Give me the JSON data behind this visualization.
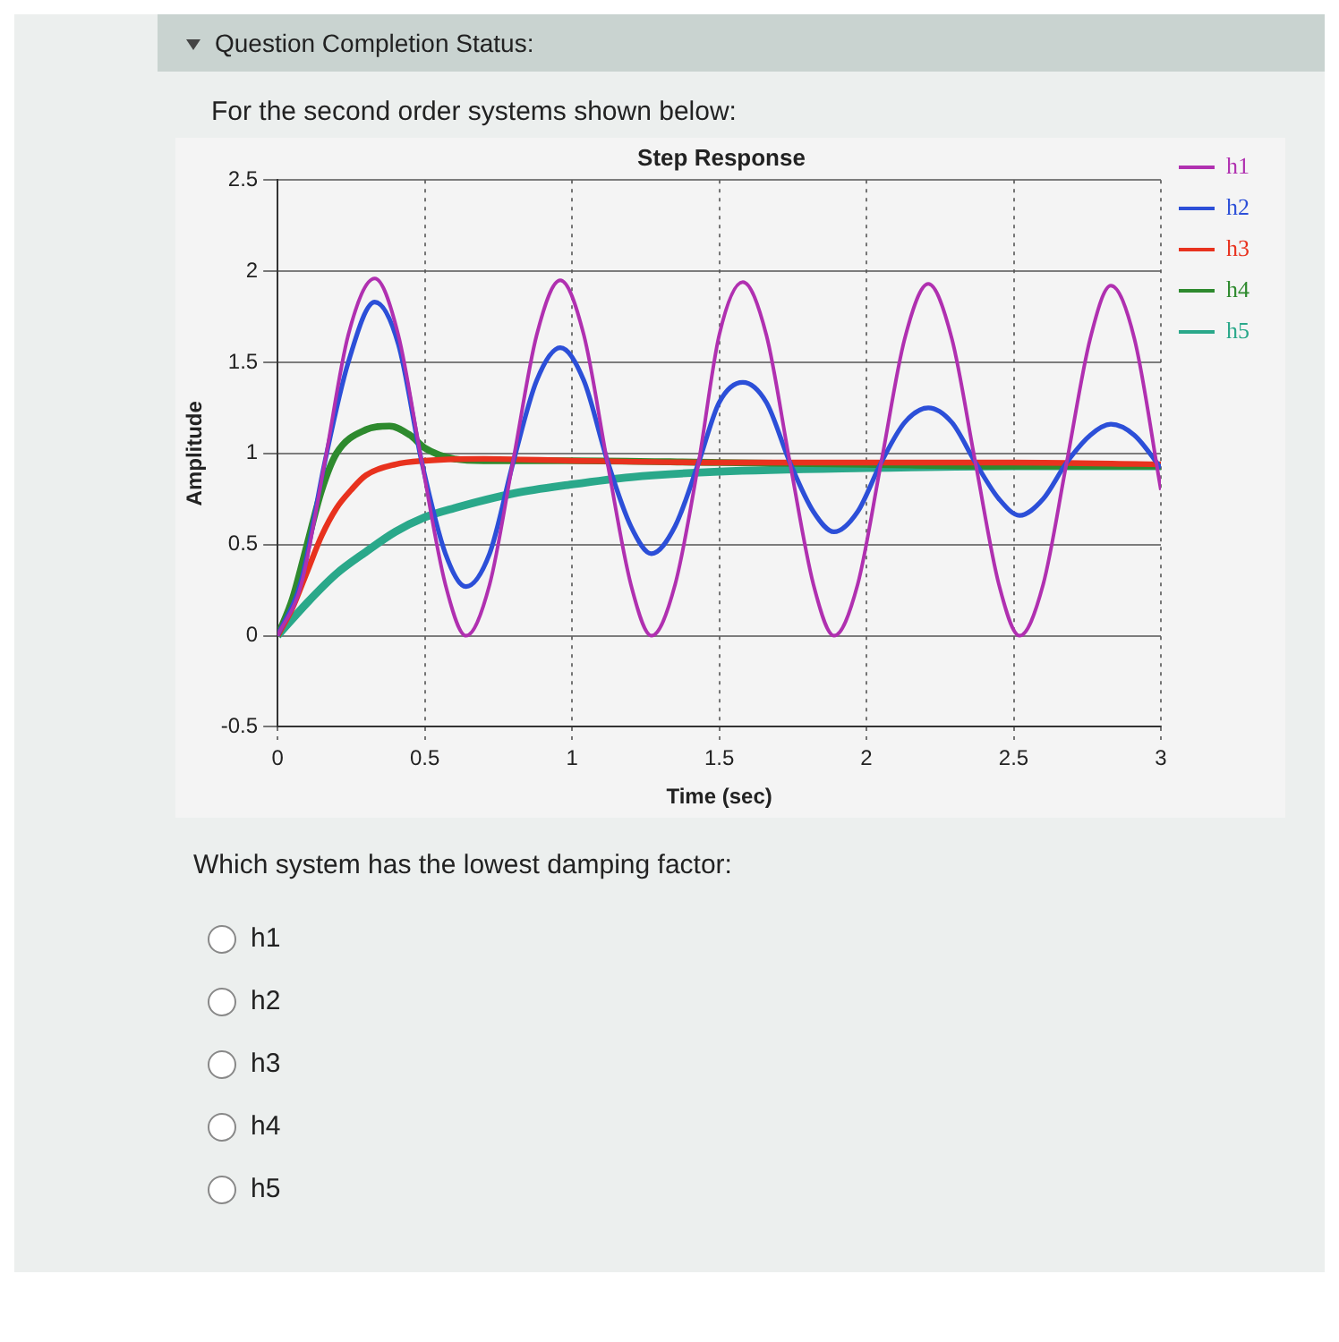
{
  "chart_data": {
    "type": "line",
    "title": "Step Response",
    "xlabel": "Time (sec)",
    "ylabel": "Amplitude",
    "annotations": [
      "Question Completion Status:",
      "For the second order systems shown below:",
      "Which system has the lowest damping factor:",
      "h1",
      "h2",
      "h3",
      "h4",
      "h5"
    ],
    "xlim": [
      0,
      3
    ],
    "xticks": [
      0,
      0.5,
      1,
      1.5,
      2,
      2.5,
      3
    ],
    "ylim": [
      -0.5,
      2.5
    ],
    "yticks": [
      -0.5,
      0,
      0.5,
      1,
      1.5,
      2,
      2.5
    ],
    "grid": true,
    "legend": "right",
    "marker": "none",
    "line_style": "solid",
    "series": [
      {
        "name": "h1",
        "color": "#b030b0",
        "x": [
          0,
          0.08,
          0.16,
          0.24,
          0.33,
          0.41,
          0.49,
          0.57,
          0.64,
          0.72,
          0.8,
          0.88,
          0.96,
          1.04,
          1.12,
          1.2,
          1.27,
          1.35,
          1.43,
          1.5,
          1.58,
          1.66,
          1.74,
          1.82,
          1.89,
          1.97,
          2.05,
          2.13,
          2.21,
          2.29,
          2.37,
          2.45,
          2.52,
          2.6,
          2.68,
          2.76,
          2.83,
          2.91,
          3
        ],
        "values": [
          0,
          0.28,
          0.95,
          1.65,
          1.96,
          1.65,
          0.95,
          0.28,
          0,
          0.28,
          0.96,
          1.65,
          1.95,
          1.65,
          0.95,
          0.28,
          0,
          0.28,
          0.95,
          1.65,
          1.94,
          1.65,
          0.95,
          0.28,
          0,
          0.28,
          0.95,
          1.63,
          1.93,
          1.63,
          0.95,
          0.28,
          0,
          0.28,
          0.95,
          1.63,
          1.92,
          1.63,
          0.8
        ]
      },
      {
        "name": "h2",
        "color": "#2c4fd8",
        "x": [
          0,
          0.08,
          0.16,
          0.24,
          0.33,
          0.41,
          0.49,
          0.57,
          0.64,
          0.72,
          0.8,
          0.88,
          0.96,
          1.04,
          1.12,
          1.2,
          1.27,
          1.35,
          1.43,
          1.5,
          1.58,
          1.66,
          1.74,
          1.82,
          1.89,
          1.97,
          2.05,
          2.13,
          2.21,
          2.29,
          2.37,
          2.45,
          2.52,
          2.6,
          2.68,
          2.76,
          2.83,
          2.91,
          3
        ],
        "values": [
          0,
          0.3,
          0.95,
          1.5,
          1.83,
          1.6,
          0.95,
          0.45,
          0.27,
          0.45,
          0.95,
          1.4,
          1.58,
          1.4,
          0.96,
          0.6,
          0.45,
          0.6,
          0.95,
          1.28,
          1.39,
          1.28,
          0.95,
          0.68,
          0.57,
          0.68,
          0.95,
          1.17,
          1.25,
          1.17,
          0.95,
          0.75,
          0.66,
          0.75,
          0.95,
          1.1,
          1.16,
          1.1,
          0.92
        ]
      },
      {
        "name": "h3",
        "color": "#e8321e",
        "x": [
          0,
          0.05,
          0.1,
          0.15,
          0.2,
          0.25,
          0.3,
          0.4,
          0.5,
          0.7,
          1,
          1.5,
          2,
          2.5,
          3
        ],
        "values": [
          0,
          0.15,
          0.35,
          0.55,
          0.7,
          0.8,
          0.88,
          0.94,
          0.96,
          0.97,
          0.96,
          0.95,
          0.95,
          0.95,
          0.94
        ]
      },
      {
        "name": "h4",
        "color": "#2e8a2e",
        "x": [
          0,
          0.05,
          0.1,
          0.15,
          0.2,
          0.3,
          0.38,
          0.45,
          0.5,
          0.6,
          0.7,
          1,
          1.5,
          2,
          2.5,
          3
        ],
        "values": [
          0,
          0.2,
          0.5,
          0.8,
          1,
          1.13,
          1.15,
          1.1,
          1.03,
          0.97,
          0.96,
          0.96,
          0.95,
          0.94,
          0.93,
          0.93
        ]
      },
      {
        "name": "h5",
        "color": "#2aa88a",
        "x": [
          0,
          0.1,
          0.2,
          0.3,
          0.4,
          0.5,
          0.6,
          0.8,
          1,
          1.2,
          1.5,
          2,
          2.5,
          3
        ],
        "values": [
          0,
          0.18,
          0.34,
          0.46,
          0.57,
          0.65,
          0.7,
          0.78,
          0.83,
          0.87,
          0.9,
          0.92,
          0.93,
          0.93
        ]
      }
    ]
  }
}
